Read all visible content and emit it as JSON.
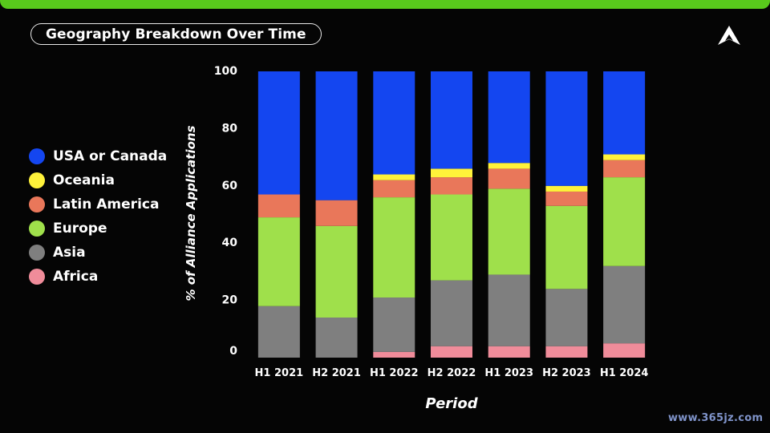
{
  "title": "Geography Breakdown Over Time",
  "watermark": "www.365jz.com",
  "chart_data": {
    "type": "bar",
    "stacked": true,
    "categories": [
      "H1 2021",
      "H2 2021",
      "H1 2022",
      "H2 2022",
      "H1 2023",
      "H2 2023",
      "H1 2024"
    ],
    "series": [
      {
        "name": "Africa",
        "color": "#f08c9a",
        "values": [
          0,
          0,
          2,
          4,
          4,
          4,
          5
        ]
      },
      {
        "name": "Asia",
        "color": "#7f7f7f",
        "values": [
          18,
          14,
          19,
          23,
          25,
          20,
          27
        ]
      },
      {
        "name": "Europe",
        "color": "#9fe04b",
        "values": [
          31,
          32,
          35,
          30,
          30,
          29,
          31
        ]
      },
      {
        "name": "Latin America",
        "color": "#e9775a",
        "values": [
          8,
          9,
          6,
          6,
          7,
          5,
          6
        ]
      },
      {
        "name": "Oceania",
        "color": "#fff23a",
        "values": [
          0,
          0,
          2,
          3,
          2,
          2,
          2
        ]
      },
      {
        "name": "USA or Canada",
        "color": "#1446f0",
        "values": [
          43,
          45,
          36,
          34,
          32,
          40,
          29
        ]
      }
    ],
    "legend_order": [
      "USA or Canada",
      "Oceania",
      "Latin America",
      "Europe",
      "Asia",
      "Africa"
    ],
    "xlabel": "Period",
    "ylabel": "% of Alliance Applications",
    "ylim": [
      0,
      100
    ],
    "yticks": [
      0,
      20,
      40,
      60,
      80,
      100
    ],
    "grid": false,
    "legend_position": "left"
  }
}
